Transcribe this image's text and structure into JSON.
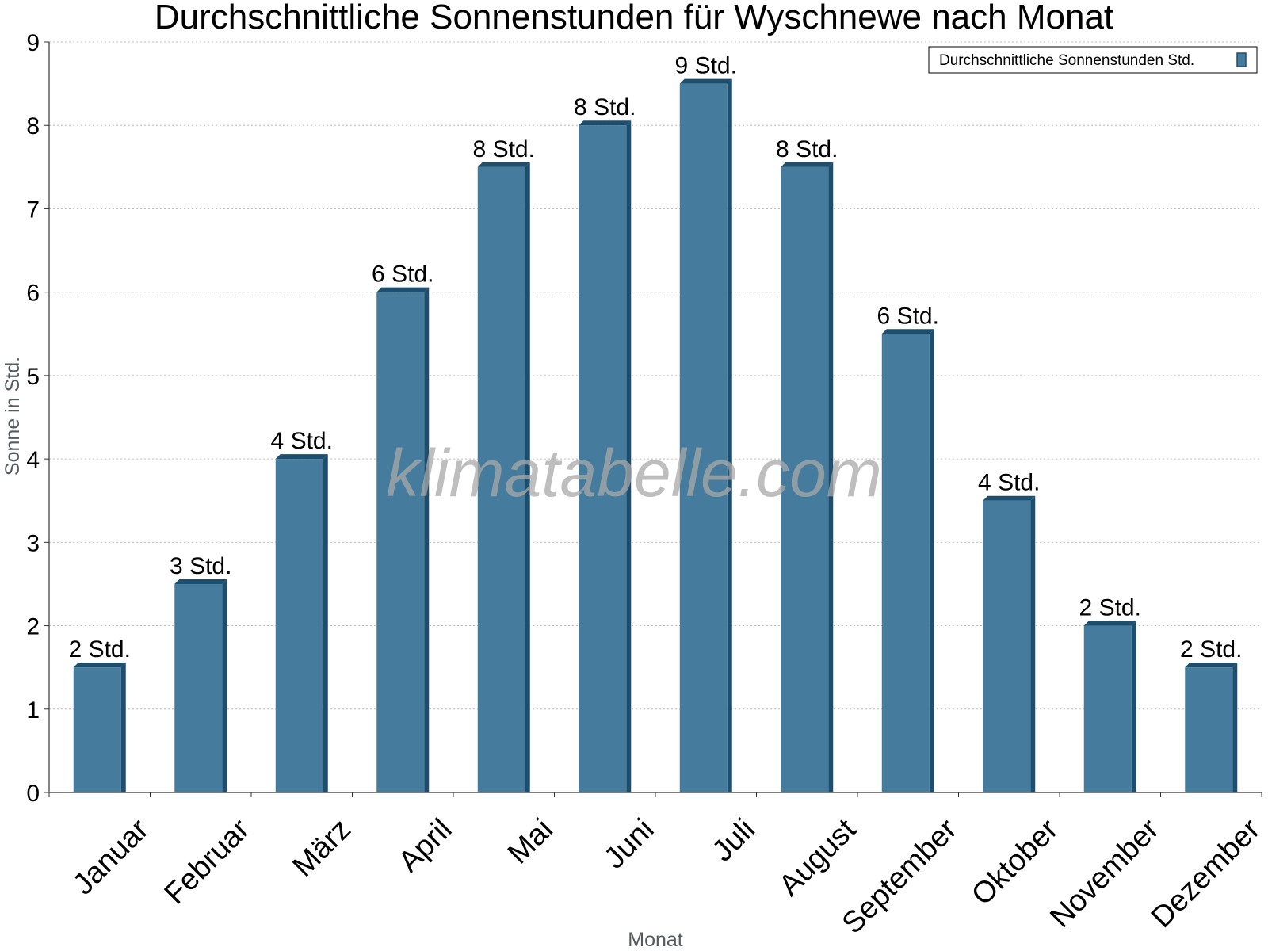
{
  "chart_data": {
    "type": "bar",
    "title": "Durchschnittliche Sonnenstunden für Wyschnewe nach Monat",
    "xlabel": "Monat",
    "ylabel": "Sonne in Std.",
    "ylim": [
      0,
      9
    ],
    "yticks": [
      "0",
      "1",
      "2",
      "3",
      "4",
      "5",
      "6",
      "7",
      "8",
      "9"
    ],
    "grid": true,
    "legend_position": "top-right",
    "categories": [
      "Januar",
      "Februar",
      "März",
      "April",
      "Mai",
      "Juni",
      "Juli",
      "August",
      "September",
      "Oktober",
      "November",
      "Dezember"
    ],
    "series": [
      {
        "name": "Durchschnittliche Sonnenstunden Std.",
        "values": [
          1.5,
          2.5,
          4,
          6,
          7.5,
          8,
          8.5,
          7.5,
          5.5,
          3.5,
          2,
          1.5
        ],
        "labels": [
          "2 Std.",
          "3 Std.",
          "4 Std.",
          "6 Std.",
          "8 Std.",
          "8 Std.",
          "9 Std.",
          "8 Std.",
          "6 Std.",
          "4 Std.",
          "2 Std.",
          "2 Std."
        ],
        "color": "#457b9d",
        "side_color": "#1d4e6e"
      }
    ],
    "watermark": "klimatabelle.com"
  }
}
